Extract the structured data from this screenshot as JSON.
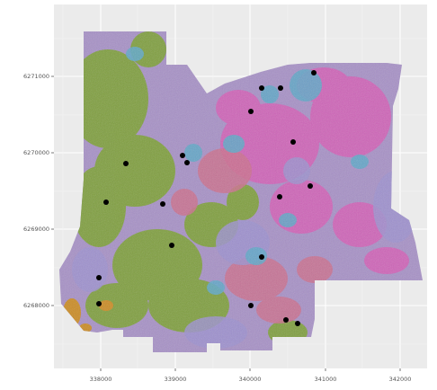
{
  "map": {
    "kind": "raster-classification-map-with-sample-points",
    "background_color": "#ebebeb",
    "gridline_color": "#ffffff",
    "point_color": "#000000",
    "class_colors": {
      "green": "#7aa02e",
      "magenta": "#d65ab7",
      "lavender": "#9b8fd0",
      "blue": "#5aa7c9",
      "rose": "#cd6b8b",
      "orange": "#cc8a1e",
      "gray_mauve": "#a58a9b"
    },
    "x_axis": {
      "tick_labels": [
        "338000",
        "339000",
        "340000",
        "341000",
        "342000"
      ]
    },
    "y_axis": {
      "tick_labels": [
        "6271000",
        "6270000",
        "6269000",
        "6268000"
      ]
    }
  }
}
